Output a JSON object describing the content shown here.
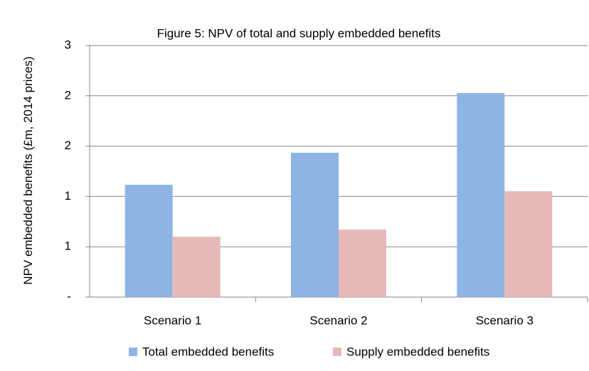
{
  "chart_data": {
    "type": "bar",
    "title": "Figure 5: NPV of total and supply embedded benefits",
    "y_label": "NPV embedded benefits (£m, 2014 prices)",
    "categories": [
      "Scenario 1",
      "Scenario 2",
      "Scenario 3"
    ],
    "series": [
      {
        "name": "Total embedded benefits",
        "color": "#8eb4e3",
        "values": [
          1.116,
          1.434,
          2.027
        ]
      },
      {
        "name": "Supply embedded benefits",
        "color": "#e6b9b8",
        "values": [
          0.6,
          0.671,
          1.052
        ]
      }
    ],
    "ylim": [
      0,
      2.5
    ],
    "yticks": [
      {
        "value": 0,
        "label": "-"
      },
      {
        "value": 0.5,
        "label": "1"
      },
      1,
      {
        "value": 1.5,
        "label": "2"
      },
      2,
      {
        "value": 2.5,
        "label": "3"
      }
    ],
    "grid": true
  }
}
